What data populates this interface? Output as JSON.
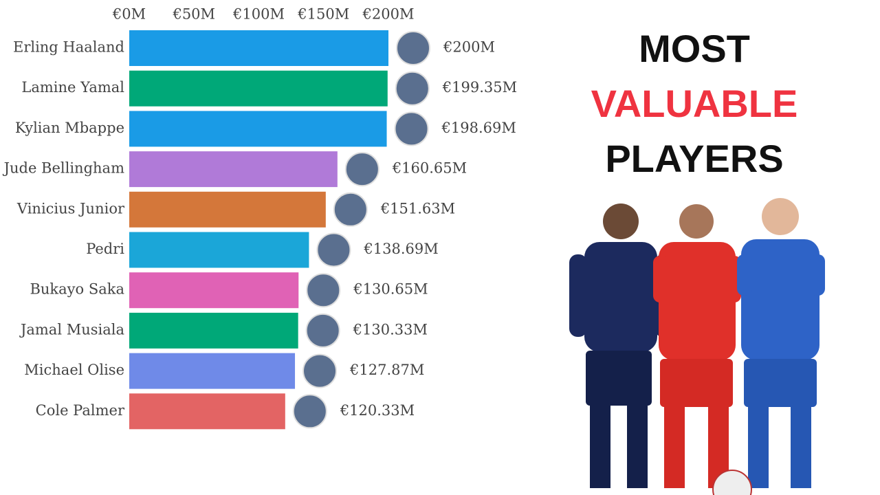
{
  "chart_data": {
    "type": "bar",
    "orientation": "horizontal",
    "headline": [
      "MOST",
      "VALUABLE",
      "PLAYERS"
    ],
    "categories": [
      "Erling Haaland",
      "Lamine Yamal",
      "Kylian Mbappe",
      "Jude Bellingham",
      "Vinicius Junior",
      "Pedri",
      "Bukayo Saka",
      "Jamal Musiala",
      "Michael Olise",
      "Cole Palmer"
    ],
    "values": [
      200,
      199.35,
      198.69,
      160.65,
      151.63,
      138.69,
      130.65,
      130.33,
      127.87,
      120.33
    ],
    "value_labels": [
      "€200M",
      "€199.35M",
      "€198.69M",
      "€160.65M",
      "€151.63M",
      "€138.69M",
      "€130.65M",
      "€130.33M",
      "€127.87M",
      "€120.33M"
    ],
    "colors": [
      "#1a9be6",
      "#00a878",
      "#1a9be6",
      "#b07ad8",
      "#d4773a",
      "#1ba6d8",
      "#e062b5",
      "#00a878",
      "#6f8ae8",
      "#e36464"
    ],
    "xlim": [
      0,
      200
    ],
    "xticks": [
      {
        "value": 0,
        "label": "€0M"
      },
      {
        "value": 50,
        "label": "€50M"
      },
      {
        "value": 100,
        "label": "€100M"
      },
      {
        "value": 150,
        "label": "€150M"
      },
      {
        "value": 200,
        "label": "€200M"
      }
    ]
  }
}
